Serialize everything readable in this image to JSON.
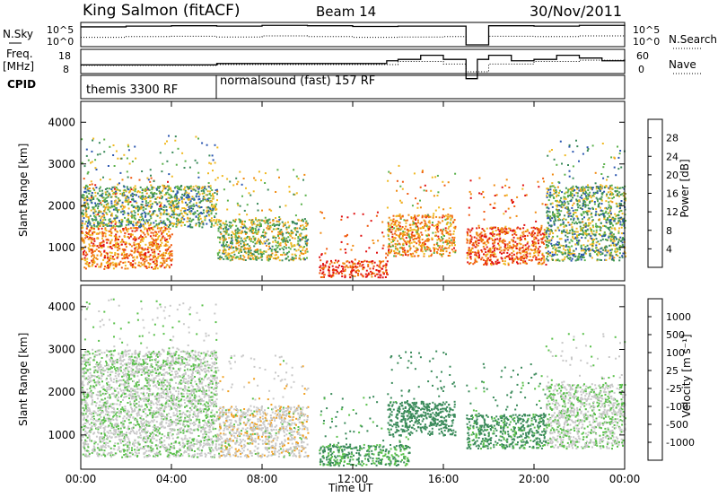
{
  "header": {
    "station": "King Salmon (fitACF)",
    "beam": "Beam 14",
    "date": "30/Nov/2011"
  },
  "side_labels": {
    "nsky": "N.Sky",
    "freq": "Freq.",
    "freq_unit": "[MHz]",
    "cpid": "CPID",
    "nsearch": "N.Search",
    "nave": "Nave"
  },
  "cpid_segments": [
    "themis 3300 RF",
    "normalsound (fast) 157 RF"
  ],
  "colors": {
    "power": [
      "#0000ff",
      "#2a55b0",
      "#3a8a5a",
      "#59b04a",
      "#f0b820",
      "#f08a10",
      "#f05a10",
      "#e01010"
    ],
    "velocity": [
      "#e01010",
      "#f05a10",
      "#f0a020",
      "#c8c8c8",
      "#c8c8c8",
      "#59c04a",
      "#3a8a5a",
      "#2a55b0"
    ]
  },
  "chart_data": [
    {
      "type": "line",
      "title": "",
      "ylabel": "N.Sky",
      "ylabel_right": "N.Search",
      "y_ticks_left": [
        "10^5",
        "10^0"
      ],
      "y_ticks_right": [
        "10^5",
        "10^0"
      ],
      "series": [
        {
          "name": "N.Sky",
          "x": [
            0,
            2,
            4,
            6,
            8,
            10,
            12,
            14,
            16,
            17,
            18,
            20,
            22,
            24
          ],
          "values": [
            4.8,
            5.0,
            5.1,
            5.0,
            5.2,
            5.1,
            4.9,
            5.0,
            5.0,
            0.0,
            5.1,
            5.0,
            5.2,
            5.0
          ]
        },
        {
          "name": "N.Search",
          "x": [
            0,
            2,
            4,
            6,
            8,
            10,
            12,
            14,
            16,
            17,
            18,
            20,
            22,
            24
          ],
          "values": [
            2.0,
            2.2,
            2.3,
            2.1,
            2.4,
            2.2,
            2.0,
            2.1,
            2.2,
            0.0,
            2.3,
            2.2,
            2.4,
            2.2
          ]
        }
      ]
    },
    {
      "type": "line",
      "ylabel": "Freq. [MHz]",
      "ylabel_right": "Nave",
      "y_ticks_left": [
        "18",
        "8"
      ],
      "y_ticks_right": [
        "60",
        "0"
      ],
      "series": [
        {
          "name": "Freq.",
          "x": [
            0,
            6,
            12,
            13.5,
            14,
            15,
            16,
            17,
            17.5,
            18,
            19,
            20,
            21,
            22,
            23,
            24
          ],
          "values": [
            10,
            11,
            11,
            13,
            14,
            17,
            14,
            0,
            14,
            17,
            13,
            14,
            17,
            15,
            13,
            14
          ]
        },
        {
          "name": "Nave",
          "x": [
            0,
            6,
            12,
            14,
            16,
            17,
            18,
            20,
            22,
            24
          ],
          "values": [
            25,
            28,
            28,
            40,
            30,
            0,
            30,
            40,
            45,
            30
          ]
        }
      ]
    },
    {
      "type": "heatmap",
      "quantity": "Power",
      "xlabel": "",
      "ylabel": "Slant Range [km]",
      "ylim": [
        200,
        4500
      ],
      "xlim": [
        0,
        24
      ],
      "y_ticks": [
        1000,
        2000,
        3000,
        4000
      ],
      "colorbar_label": "Power [dB]",
      "colorbar_ticks": [
        "4",
        "8",
        "12",
        "16",
        "20",
        "24",
        "28"
      ],
      "colorbar_range": [
        0,
        30
      ],
      "echo_regions": [
        {
          "x": [
            0.0,
            4.0
          ],
          "y": [
            500,
            1500
          ],
          "value": 22
        },
        {
          "x": [
            0.0,
            6.0
          ],
          "y": [
            1500,
            2500
          ],
          "value": 12
        },
        {
          "x": [
            6.0,
            10.0
          ],
          "y": [
            700,
            1700
          ],
          "value": 14
        },
        {
          "x": [
            10.5,
            13.5
          ],
          "y": [
            300,
            700
          ],
          "value": 26
        },
        {
          "x": [
            13.5,
            16.5
          ],
          "y": [
            800,
            1800
          ],
          "value": 20
        },
        {
          "x": [
            17.0,
            20.5
          ],
          "y": [
            600,
            1500
          ],
          "value": 24
        },
        {
          "x": [
            20.5,
            24.0
          ],
          "y": [
            700,
            2500
          ],
          "value": 12
        }
      ]
    },
    {
      "type": "heatmap",
      "quantity": "Velocity",
      "xlabel": "Time UT",
      "ylabel": "Slant Range [km]",
      "ylim": [
        200,
        4500
      ],
      "xlim": [
        0,
        24
      ],
      "x_ticks": [
        "00:00",
        "04:00",
        "08:00",
        "12:00",
        "16:00",
        "20:00",
        "00:00"
      ],
      "y_ticks": [
        1000,
        2000,
        3000,
        4000
      ],
      "colorbar_label": "Velocity [m s⁻¹]",
      "colorbar_ticks": [
        "-1000",
        "-500",
        "-100",
        "-25",
        "25",
        "100",
        "500",
        "1000"
      ],
      "echo_regions": [
        {
          "x": [
            0.0,
            6.0
          ],
          "y": [
            500,
            1500
          ],
          "value": 0
        },
        {
          "x": [
            0.0,
            6.0
          ],
          "y": [
            1500,
            3000
          ],
          "value": 0
        },
        {
          "x": [
            6.0,
            10.0
          ],
          "y": [
            500,
            1700
          ],
          "value": -50
        },
        {
          "x": [
            10.5,
            14.5
          ],
          "y": [
            300,
            800
          ],
          "value": 120
        },
        {
          "x": [
            13.5,
            16.5
          ],
          "y": [
            1000,
            1800
          ],
          "value": 300
        },
        {
          "x": [
            17.0,
            20.5
          ],
          "y": [
            700,
            1500
          ],
          "value": 150
        },
        {
          "x": [
            20.5,
            24.0
          ],
          "y": [
            700,
            2200
          ],
          "value": 0
        }
      ]
    }
  ]
}
